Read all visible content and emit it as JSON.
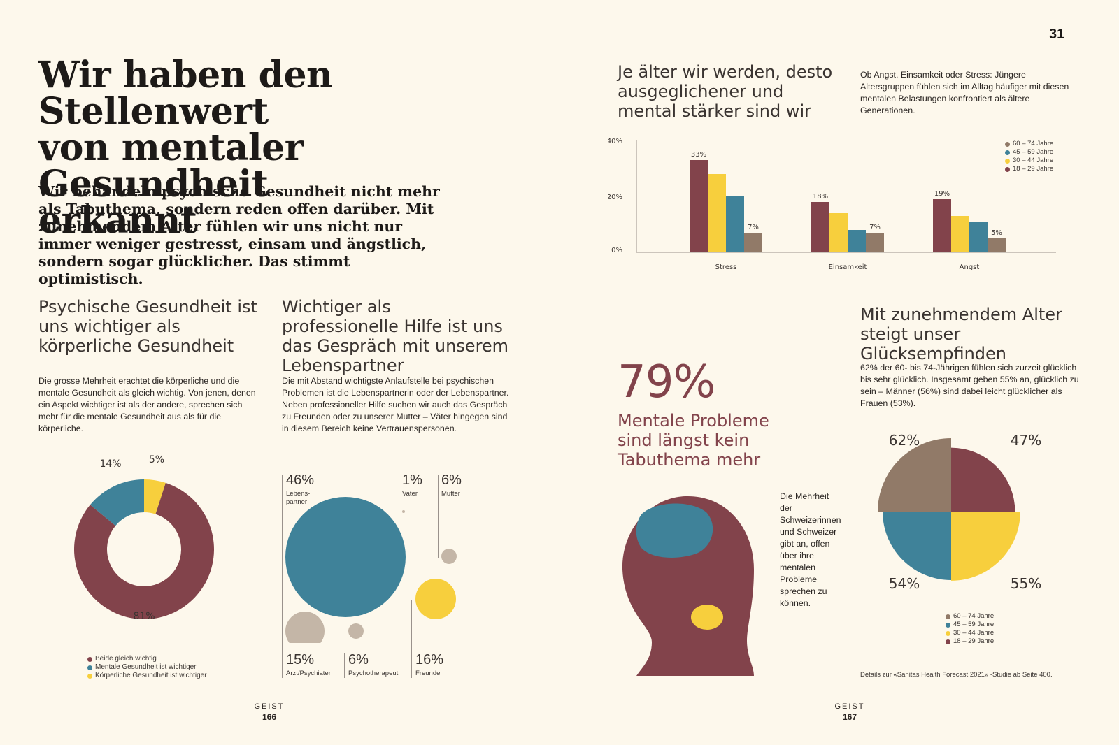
{
  "headline": [
    "Wir haben den Stellenwert",
    "von mentaler Gesundheit",
    "erkannt"
  ],
  "lead": "Wir behandeln psychische Gesundheit nicht mehr als Tabuthema, sondern reden offen darüber. Mit zunehmendem Alter fühlen wir uns nicht nur immer weniger gestresst, einsam und ängstlich, sondern sogar glücklicher. Das stimmt optimistisch.",
  "section1": {
    "title": "Psychische Gesundheit ist uns wichtiger als körperliche Gesundheit",
    "body": "Die grosse Mehrheit erachtet die körperliche und die mentale Gesundheit als gleich wichtig. Von jenen, denen ein Aspekt wichtiger ist als der andere, sprechen sich mehr für die mentale Gesundheit aus als für die körperliche.",
    "donut": {
      "slices": [
        {
          "label": "Beide gleich wichtig",
          "value": 81,
          "display": "81%",
          "color": "#82434b"
        },
        {
          "label": "Mentale Gesundheit ist wichtiger",
          "value": 14,
          "display": "14%",
          "color": "#3f8299"
        },
        {
          "label": "Körperliche Gesundheit ist wichtiger",
          "value": 5,
          "display": "5%",
          "color": "#f7cf3d"
        }
      ]
    }
  },
  "section2": {
    "title": "Wichtiger als professionelle Hilfe ist uns das Gespräch mit unserem Lebenspartner",
    "body": "Die mit Abstand wichtigste Anlaufstelle bei psychischen Problemen ist die Lebenspartnerin oder der Lebenspartner. Neben professioneller Hilfe suchen wir auch das Gespräch zu Freunden oder zu unserer Mutter – Väter hingegen sind in diesem Bereich keine Vertrauenspersonen.",
    "bubbles": [
      {
        "label": "Lebens-\npartner",
        "value": 46,
        "display": "46%"
      },
      {
        "label": "Vater",
        "value": 1,
        "display": "1%"
      },
      {
        "label": "Mutter",
        "value": 6,
        "display": "6%"
      },
      {
        "label": "Arzt/Psychiater",
        "value": 15,
        "display": "15%"
      },
      {
        "label": "Psychotherapeut",
        "value": 6,
        "display": "6%"
      },
      {
        "label": "Freunde",
        "value": 16,
        "display": "16%"
      }
    ]
  },
  "pages": {
    "left": {
      "label": "GEIST",
      "number": "166"
    },
    "right": {
      "label": "GEIST",
      "number": "167"
    },
    "corner": "31"
  },
  "section3": {
    "title": "Je älter wir werden, desto ausgeglichener und mental stärker sind wir",
    "intro": "Ob Angst, Einsamkeit oder Stress: Jüngere Altersgruppen fühlen sich im Alltag häufiger mit diesen mentalen Belastungen konfrontiert als ältere Generationen."
  },
  "chart_data": [
    {
      "type": "bar",
      "categories": [
        "Stress",
        "Einsamkeit",
        "Angst"
      ],
      "series": [
        {
          "name": "18 – 29 Jahre",
          "color": "#82434b",
          "values": [
            33,
            18,
            19
          ]
        },
        {
          "name": "30 – 44 Jahre",
          "color": "#f7cf3d",
          "values": [
            28,
            14,
            13
          ]
        },
        {
          "name": "45 – 59 Jahre",
          "color": "#3f8299",
          "values": [
            20,
            8,
            11
          ]
        },
        {
          "name": "60 – 74 Jahre",
          "color": "#917a68",
          "values": [
            7,
            7,
            5
          ]
        }
      ],
      "data_labels": [
        {
          "series": 0,
          "category": 0,
          "text": "33%"
        },
        {
          "series": 3,
          "category": 0,
          "text": "7%"
        },
        {
          "series": 0,
          "category": 1,
          "text": "18%"
        },
        {
          "series": 3,
          "category": 1,
          "text": "7%"
        },
        {
          "series": 0,
          "category": 2,
          "text": "19%"
        },
        {
          "series": 3,
          "category": 2,
          "text": "5%"
        }
      ],
      "yticks": [
        "0%",
        "20%",
        "40%"
      ],
      "ylim": [
        0,
        40
      ],
      "legend_order": [
        "60 – 74 Jahre",
        "45 – 59 Jahre",
        "30 – 44 Jahre",
        "18 – 29 Jahre"
      ],
      "legend_position": "top-right"
    },
    {
      "type": "pie",
      "categories": [
        "60 – 74 Jahre",
        "18 – 29 Jahre",
        "45 – 59 Jahre",
        "30 – 44 Jahre"
      ],
      "values": [
        62,
        47,
        54,
        55
      ],
      "labels": [
        "62%",
        "47%",
        "54%",
        "55%"
      ],
      "colors": [
        "#917a68",
        "#82434b",
        "#3f8299",
        "#f7cf3d"
      ],
      "legend_order": [
        "60 – 74 Jahre",
        "45 – 59 Jahre",
        "30 – 44 Jahre",
        "18 – 29 Jahre"
      ],
      "legend_colors": [
        "#917a68",
        "#3f8299",
        "#f7cf3d",
        "#82434b"
      ],
      "legend_position": "bottom"
    }
  ],
  "section4": {
    "percent": "79%",
    "title": "Mentale Probleme sind längst kein Tabuthema mehr",
    "body": "Die Mehrheit der Schweizerinnen und Schweizer gibt an, offen über ihre mentalen Probleme sprechen zu können.",
    "color": "#82434b"
  },
  "section5": {
    "title": "Mit zunehmendem Alter steigt unser Glücksempfinden",
    "body": "62% der 60- bis 74-Jährigen fühlen sich zurzeit glücklich bis sehr glücklich. Insgesamt geben 55% an, glücklich zu sein – Männer (56%) sind dabei leicht glücklicher als Frauen (53%).",
    "footnote": "Details zur «Sanitas Health Forecast 2021» -Studie ab Seite 400."
  }
}
